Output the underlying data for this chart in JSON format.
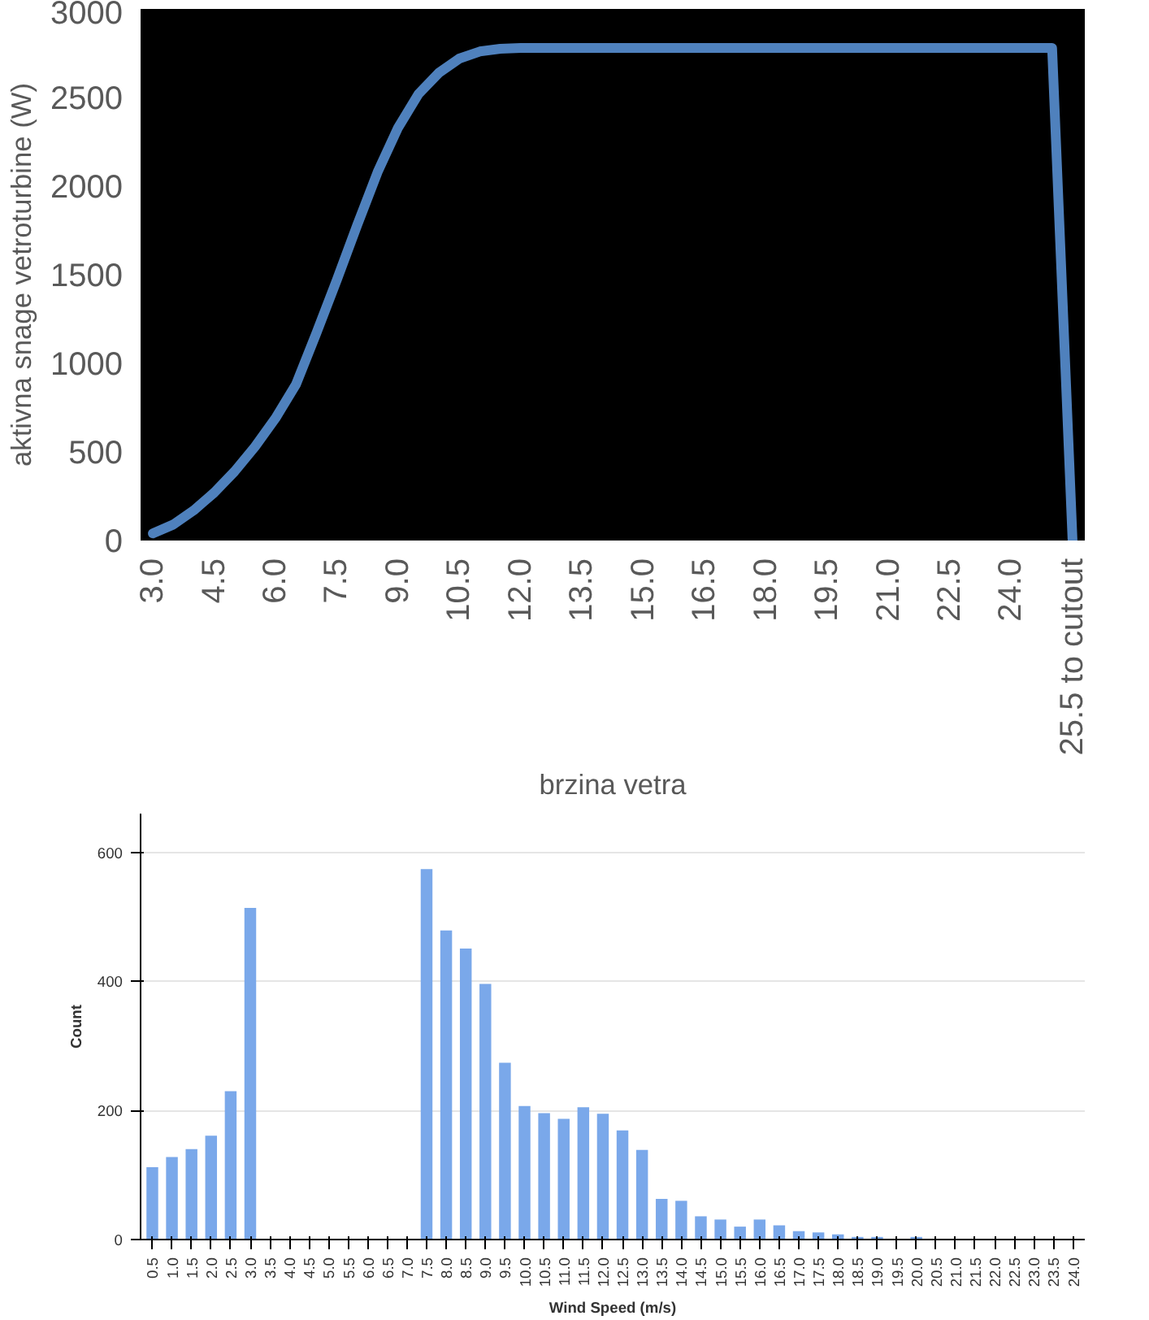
{
  "chart_data": [
    {
      "type": "line",
      "xlabel": "brzina vetra",
      "ylabel": "aktivna snage vetroturbine (W)",
      "categories": [
        "3.0",
        null,
        null,
        "4.5",
        null,
        null,
        "6.0",
        null,
        null,
        "7.5",
        null,
        null,
        "9.0",
        null,
        null,
        "10.5",
        null,
        null,
        "12.0",
        null,
        null,
        "13.5",
        null,
        null,
        "15.0",
        null,
        null,
        "16.5",
        null,
        null,
        "18.0",
        null,
        null,
        "19.5",
        null,
        null,
        "21.0",
        null,
        null,
        "22.5",
        null,
        null,
        "24.0",
        null,
        null,
        "25.5 to cutout"
      ],
      "values": [
        40,
        90,
        170,
        270,
        390,
        530,
        690,
        880,
        1170,
        1470,
        1780,
        2080,
        2330,
        2520,
        2640,
        2720,
        2760,
        2775,
        2780,
        2780,
        2780,
        2780,
        2780,
        2780,
        2780,
        2780,
        2780,
        2780,
        2780,
        2780,
        2780,
        2780,
        2780,
        2780,
        2780,
        2780,
        2780,
        2780,
        2780,
        2780,
        2780,
        2780,
        2780,
        2780,
        2780,
        0
      ],
      "color": "#4f81bd",
      "ylim": [
        0,
        3000
      ],
      "yticks": [
        0,
        500,
        1000,
        1500,
        2000,
        2500,
        3000
      ],
      "grid": false
    },
    {
      "type": "bar",
      "xlabel": "Wind Speed (m/s)",
      "ylabel": "Count",
      "categories": [
        "0.5",
        "1.0",
        "1.5",
        "2.0",
        "2.5",
        "3.0",
        "3.5",
        "4.0",
        "4.5",
        "5.0",
        "5.5",
        "6.0",
        "6.5",
        "7.0",
        "7.5",
        "8.0",
        "8.5",
        "9.0",
        "9.5",
        "10.0",
        "10.5",
        "11.0",
        "11.5",
        "12.0",
        "12.5",
        "13.0",
        "13.5",
        "14.0",
        "14.5",
        "15.0",
        "15.5",
        "16.0",
        "16.5",
        "17.0",
        "17.5",
        "18.0",
        "18.5",
        "19.0",
        "19.5",
        "20.0",
        "20.5",
        "21.0",
        "21.5",
        "22.0",
        "22.5",
        "23.0",
        "23.5",
        "24.0"
      ],
      "values": [
        112,
        128,
        140,
        161,
        230,
        514,
        null,
        null,
        null,
        null,
        null,
        null,
        null,
        null,
        574,
        479,
        451,
        396,
        274,
        207,
        196,
        187,
        205,
        195,
        169,
        139,
        63,
        60,
        36,
        31,
        20,
        31,
        22,
        13,
        11,
        8,
        4,
        4,
        0,
        4,
        0,
        0,
        0,
        0,
        0,
        0,
        0,
        0
      ],
      "color": "#7aa8ea",
      "ylim": [
        0,
        660
      ],
      "yticks": [
        0,
        200,
        400,
        600
      ],
      "grid": "y"
    }
  ]
}
